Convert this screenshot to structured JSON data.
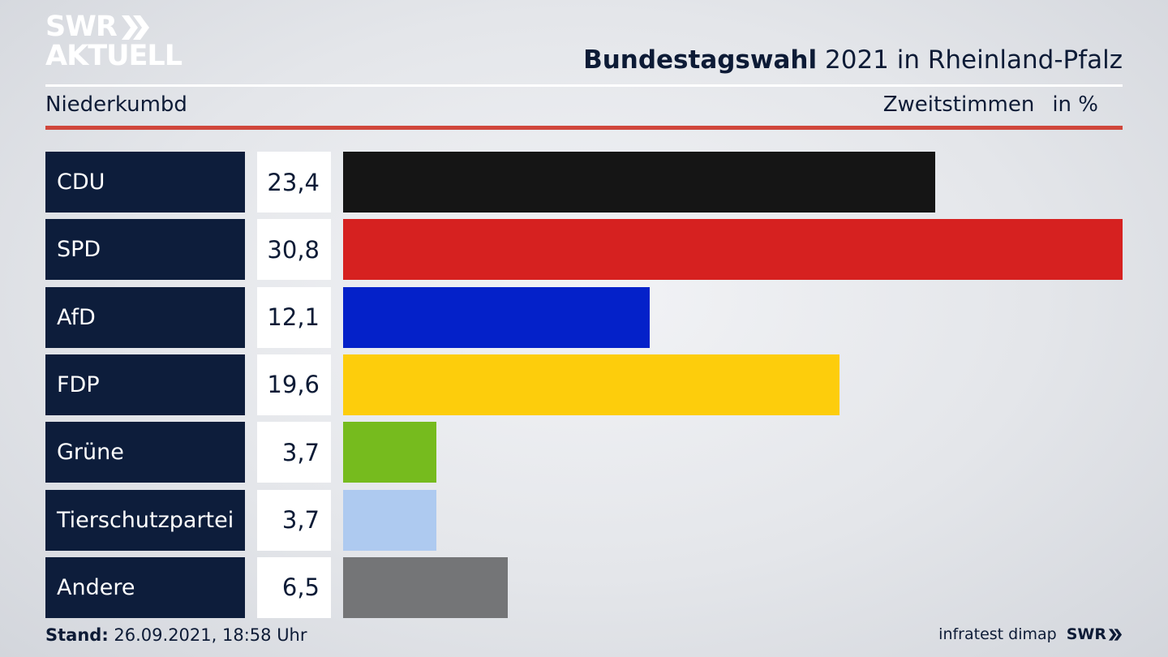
{
  "logo": {
    "line1": "SWR",
    "line2": "AKTUELL"
  },
  "header": {
    "title_bold": "Bundestagswahl",
    "title_rest": "2021 in Rheinland-Pfalz"
  },
  "subheader": {
    "location": "Niederkumbd",
    "metric": "Zweitstimmen",
    "unit": "in %"
  },
  "colors": {
    "CDU": "#151515",
    "SPD": "#d62120",
    "AfD": "#0421c9",
    "FDP": "#fdcd0c",
    "Grüne": "#76bb1e",
    "Tierschutzpartei": "#aecaf0",
    "Andere": "#747577",
    "party_bg": "#0d1d3b",
    "accent_rule": "#d0463b"
  },
  "chart_data": {
    "type": "bar",
    "orientation": "horizontal",
    "categories": [
      "CDU",
      "SPD",
      "AfD",
      "FDP",
      "Grüne",
      "Tierschutzpartei",
      "Andere"
    ],
    "values": [
      23.4,
      30.8,
      12.1,
      19.6,
      3.7,
      3.7,
      6.5
    ],
    "value_labels": [
      "23,4",
      "30,8",
      "12,1",
      "19,6",
      "3,7",
      "3,7",
      "6,5"
    ],
    "xlim": [
      0,
      30.8
    ],
    "grid": false
  },
  "footer": {
    "stand_label": "Stand:",
    "stand_value": "26.09.2021, 18:58 Uhr",
    "source": "infratest dimap",
    "brand": "SWR"
  }
}
